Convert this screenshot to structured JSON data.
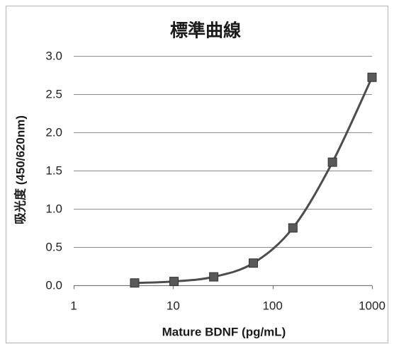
{
  "chart_data": {
    "type": "line",
    "title": "標準曲線",
    "xlabel": "Mature BDNF (pg/mL)",
    "ylabel": "吸光度 (450/620nm)",
    "x_scale": "log",
    "xlim": [
      1,
      1000
    ],
    "ylim": [
      0,
      3.0
    ],
    "xticks": [
      "1",
      "10",
      "100",
      "1000"
    ],
    "yticks": [
      "0.0",
      "0.5",
      "1.0",
      "1.5",
      "2.0",
      "2.5",
      "3.0"
    ],
    "grid": "horizontal",
    "x": [
      4.1,
      10.2,
      25.6,
      64,
      160,
      400,
      1000
    ],
    "series": [
      {
        "values": [
          0.03,
          0.05,
          0.11,
          0.29,
          0.75,
          1.61,
          2.72
        ],
        "marker": "square",
        "smooth": true,
        "color": "#4d4d4d",
        "marker_color": "#595959"
      }
    ]
  }
}
